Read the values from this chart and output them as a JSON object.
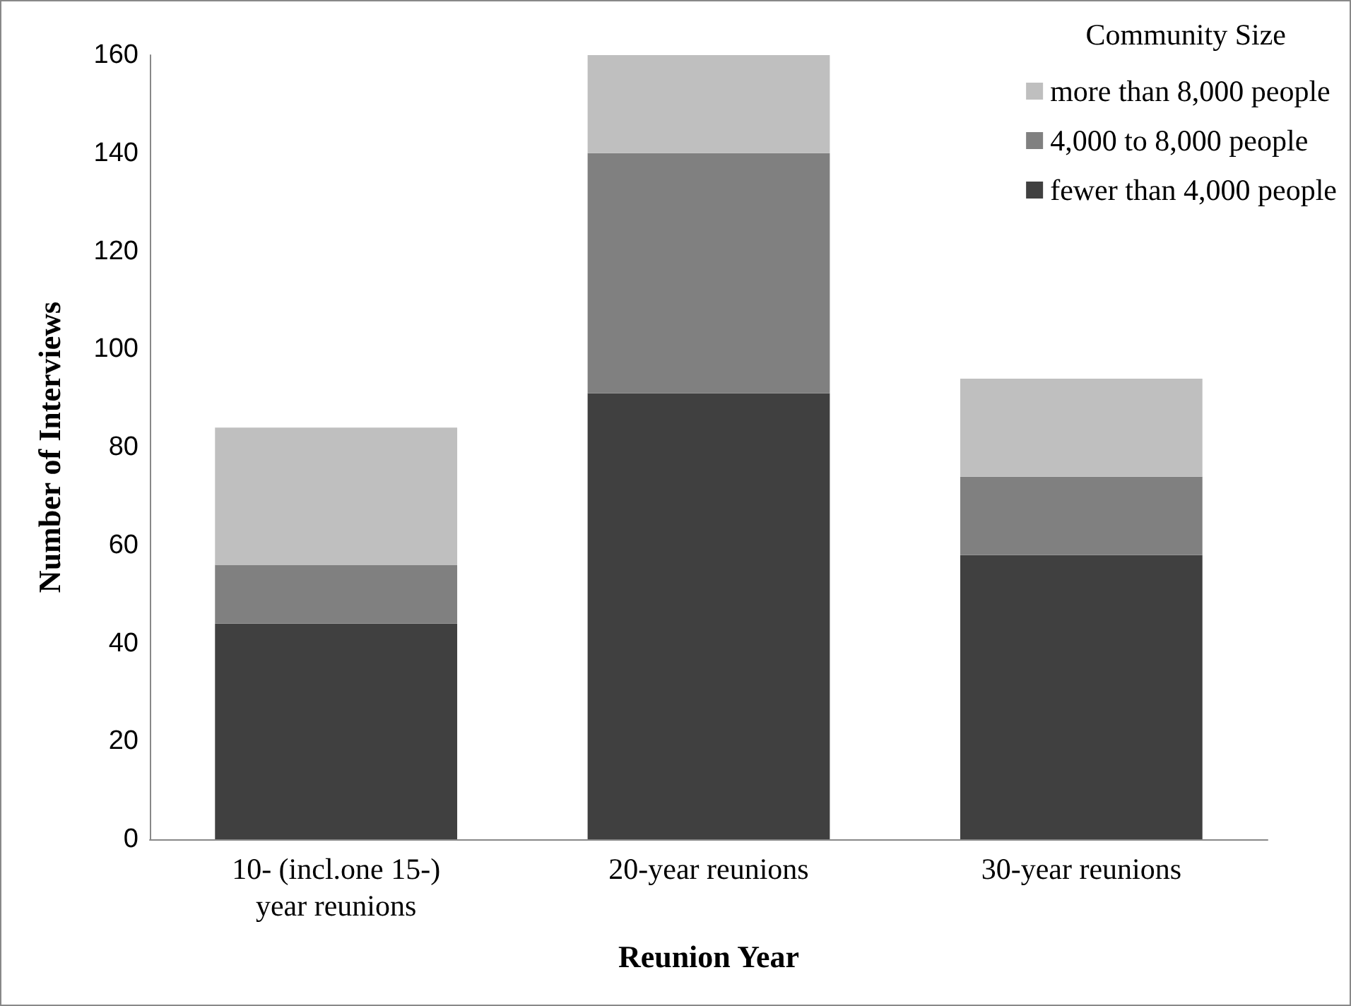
{
  "chart_data": {
    "type": "bar",
    "xlabel": "Reunion Year",
    "ylabel": "Number of Interviews",
    "legend_title": "Community Size",
    "categories": [
      "10- (incl.one 15-)\nyear reunions",
      "20-year reunions",
      "30-year reunions"
    ],
    "series": [
      {
        "name": "fewer than 4,000 people",
        "color": "#404040",
        "values": [
          44,
          91,
          58
        ]
      },
      {
        "name": "4,000 to 8,000 people",
        "color": "#808080",
        "values": [
          12,
          49,
          16
        ]
      },
      {
        "name": "more than 8,000 people",
        "color": "#bfbfbf",
        "values": [
          28,
          20,
          20
        ]
      }
    ],
    "stacked": true,
    "ylim": [
      0,
      160
    ],
    "yticks": [
      0,
      20,
      40,
      60,
      80,
      100,
      120,
      140,
      160
    ],
    "grid": false,
    "legend": "top right"
  }
}
